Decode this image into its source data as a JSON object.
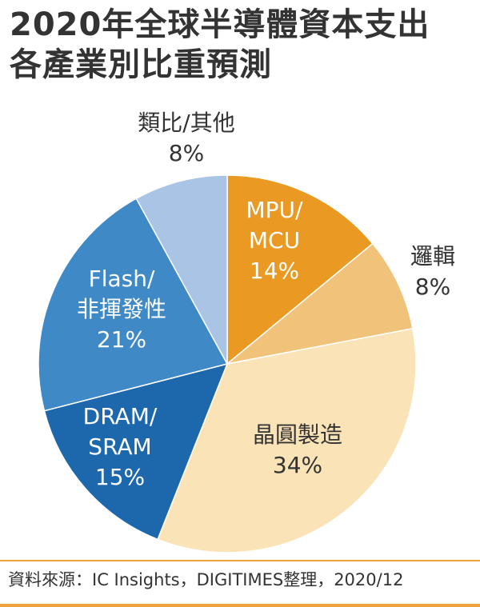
{
  "title_line1": "2020年全球半導體資本支出",
  "title_line2": "各產業別比重預測",
  "source": "資料來源：IC Insights，DIGITIMES整理，2020/12",
  "chart_data": {
    "type": "pie",
    "slices": [
      {
        "label_lines": [
          "MPU/",
          "MCU"
        ],
        "pct_label": "14%",
        "value": 14,
        "color": "#ea9a22",
        "text_color": "#ffffff"
      },
      {
        "label_lines": [
          "邏輯"
        ],
        "pct_label": "8%",
        "value": 8,
        "color": "#f1c27a",
        "text_color": "#333333"
      },
      {
        "label_lines": [
          "晶圓製造"
        ],
        "pct_label": "34%",
        "value": 34,
        "color": "#fae3b6",
        "text_color": "#333333"
      },
      {
        "label_lines": [
          "DRAM/",
          "SRAM"
        ],
        "pct_label": "15%",
        "value": 15,
        "color": "#1d68ad",
        "text_color": "#ffffff"
      },
      {
        "label_lines": [
          "Flash/",
          "非揮發性"
        ],
        "pct_label": "21%",
        "value": 21,
        "color": "#3f89c6",
        "text_color": "#ffffff"
      },
      {
        "label_lines": [
          "類比/其他"
        ],
        "pct_label": "8%",
        "value": 8,
        "color": "#a9c4e4",
        "text_color": "#333333"
      }
    ]
  }
}
